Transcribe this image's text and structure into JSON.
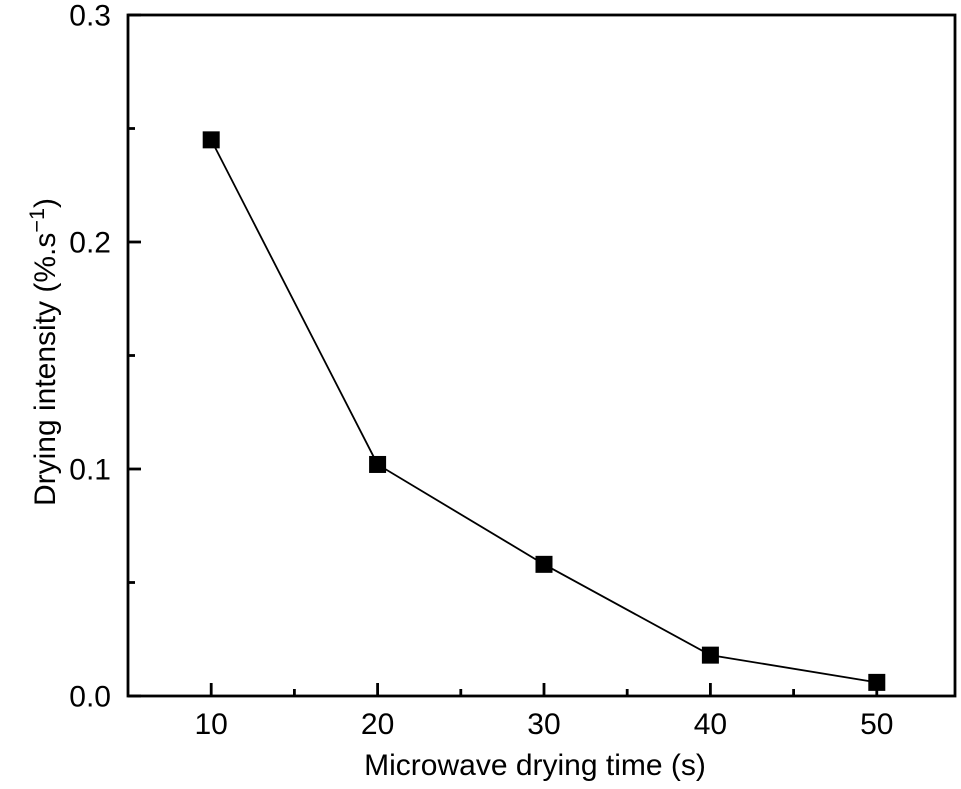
{
  "chart_data": {
    "type": "line",
    "title": "",
    "xlabel": "Microwave drying time (s)",
    "ylabel": "Drying intensity (%.s−1)",
    "ylabel_parts": {
      "pre": "Drying intensity (%.s",
      "sup": "−1",
      "post": ")"
    },
    "series": [
      {
        "name": "drying intensity",
        "x": [
          10,
          20,
          30,
          40,
          50
        ],
        "y": [
          0.245,
          0.102,
          0.058,
          0.018,
          0.006
        ],
        "marker": "filled-square",
        "color": "#000000"
      }
    ],
    "x_ticks": [
      10,
      20,
      30,
      40,
      50
    ],
    "x_tick_labels": [
      "10",
      "20",
      "30",
      "40",
      "50"
    ],
    "x_minor_ticks": [
      15,
      25,
      35,
      45
    ],
    "y_ticks": [
      0.0,
      0.1,
      0.2,
      0.3
    ],
    "y_tick_labels": [
      "0.0",
      "0.1",
      "0.2",
      "0.3"
    ],
    "y_minor_ticks": [
      0.05,
      0.15,
      0.25
    ],
    "xlim": [
      5,
      54.7
    ],
    "ylim": [
      0,
      0.3
    ],
    "grid": false,
    "legend": "none",
    "axis_color": "#000000",
    "background_color": "#ffffff"
  }
}
